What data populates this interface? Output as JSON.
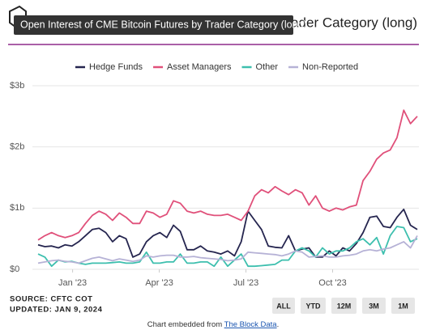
{
  "chart_data": {
    "type": "line",
    "title": "Open Interest of CME Bitcoin Futures by Trader Category (long)",
    "series": [
      {
        "name": "Hedge Funds",
        "color": "#25254f",
        "values": [
          0.4,
          0.37,
          0.38,
          0.35,
          0.4,
          0.38,
          0.45,
          0.55,
          0.65,
          0.67,
          0.6,
          0.45,
          0.55,
          0.5,
          0.2,
          0.25,
          0.45,
          0.55,
          0.6,
          0.52,
          0.72,
          0.62,
          0.32,
          0.32,
          0.38,
          0.3,
          0.28,
          0.25,
          0.3,
          0.22,
          0.45,
          0.95,
          0.8,
          0.65,
          0.38,
          0.36,
          0.35,
          0.55,
          0.3,
          0.33,
          0.35,
          0.2,
          0.2,
          0.3,
          0.22,
          0.35,
          0.3,
          0.42,
          0.6,
          0.85,
          0.87,
          0.7,
          0.68,
          0.85,
          0.98,
          0.72,
          0.65
        ]
      },
      {
        "name": "Asset Managers",
        "color": "#e0507a",
        "values": [
          0.48,
          0.55,
          0.6,
          0.55,
          0.52,
          0.55,
          0.6,
          0.75,
          0.88,
          0.95,
          0.9,
          0.8,
          0.92,
          0.85,
          0.75,
          0.75,
          0.95,
          0.92,
          0.85,
          0.9,
          1.12,
          1.08,
          0.95,
          0.92,
          0.95,
          0.9,
          0.88,
          0.88,
          0.9,
          0.85,
          0.8,
          0.95,
          1.2,
          1.3,
          1.25,
          1.35,
          1.28,
          1.22,
          1.3,
          1.25,
          1.05,
          1.2,
          1.0,
          0.95,
          1.0,
          0.97,
          1.02,
          1.05,
          1.45,
          1.6,
          1.8,
          1.9,
          1.95,
          2.15,
          2.6,
          2.38,
          2.5
        ]
      },
      {
        "name": "Other",
        "color": "#3dbfae",
        "values": [
          0.25,
          0.2,
          0.05,
          0.15,
          0.12,
          0.13,
          0.1,
          0.08,
          0.1,
          0.1,
          0.1,
          0.11,
          0.12,
          0.1,
          0.1,
          0.12,
          0.28,
          0.1,
          0.1,
          0.12,
          0.12,
          0.25,
          0.1,
          0.1,
          0.12,
          0.12,
          0.05,
          0.2,
          0.05,
          0.15,
          0.25,
          0.05,
          0.05,
          0.06,
          0.07,
          0.08,
          0.15,
          0.15,
          0.3,
          0.35,
          0.3,
          0.2,
          0.35,
          0.25,
          0.3,
          0.3,
          0.35,
          0.45,
          0.5,
          0.4,
          0.52,
          0.25,
          0.55,
          0.7,
          0.68,
          0.45,
          0.5
        ]
      },
      {
        "name": "Non-Reported",
        "color": "#b6b2d6",
        "values": [
          0.1,
          0.12,
          0.14,
          0.15,
          0.13,
          0.12,
          0.1,
          0.14,
          0.18,
          0.2,
          0.17,
          0.14,
          0.17,
          0.15,
          0.13,
          0.15,
          0.22,
          0.2,
          0.22,
          0.23,
          0.23,
          0.2,
          0.2,
          0.21,
          0.19,
          0.18,
          0.17,
          0.16,
          0.14,
          0.15,
          0.17,
          0.28,
          0.27,
          0.26,
          0.25,
          0.24,
          0.22,
          0.25,
          0.3,
          0.28,
          0.2,
          0.21,
          0.22,
          0.2,
          0.2,
          0.22,
          0.23,
          0.25,
          0.3,
          0.32,
          0.3,
          0.33,
          0.35,
          0.4,
          0.45,
          0.35,
          0.55
        ]
      }
    ],
    "ylim": [
      0,
      3
    ],
    "yticks": [
      {
        "value": 0,
        "label": "$0"
      },
      {
        "value": 1,
        "label": "$1b"
      },
      {
        "value": 2,
        "label": "$2b"
      },
      {
        "value": 3,
        "label": "$3b"
      }
    ],
    "xlim": [
      0,
      56
    ],
    "xticks": [
      {
        "value": 5.1,
        "label": "Jan '23"
      },
      {
        "value": 17.9,
        "label": "Apr '23"
      },
      {
        "value": 30.7,
        "label": "Jul '23"
      },
      {
        "value": 43.5,
        "label": "Oct '23"
      }
    ],
    "grid": true,
    "source": "SOURCE: CFTC COT",
    "updated": "UPDATED: JAN 9, 2024",
    "buttons": [
      "ALL",
      "YTD",
      "12M",
      "3M",
      "1M"
    ]
  },
  "footer": {
    "prefix": "Chart embedded from",
    "link": "The Block Data",
    "suffix": "."
  }
}
